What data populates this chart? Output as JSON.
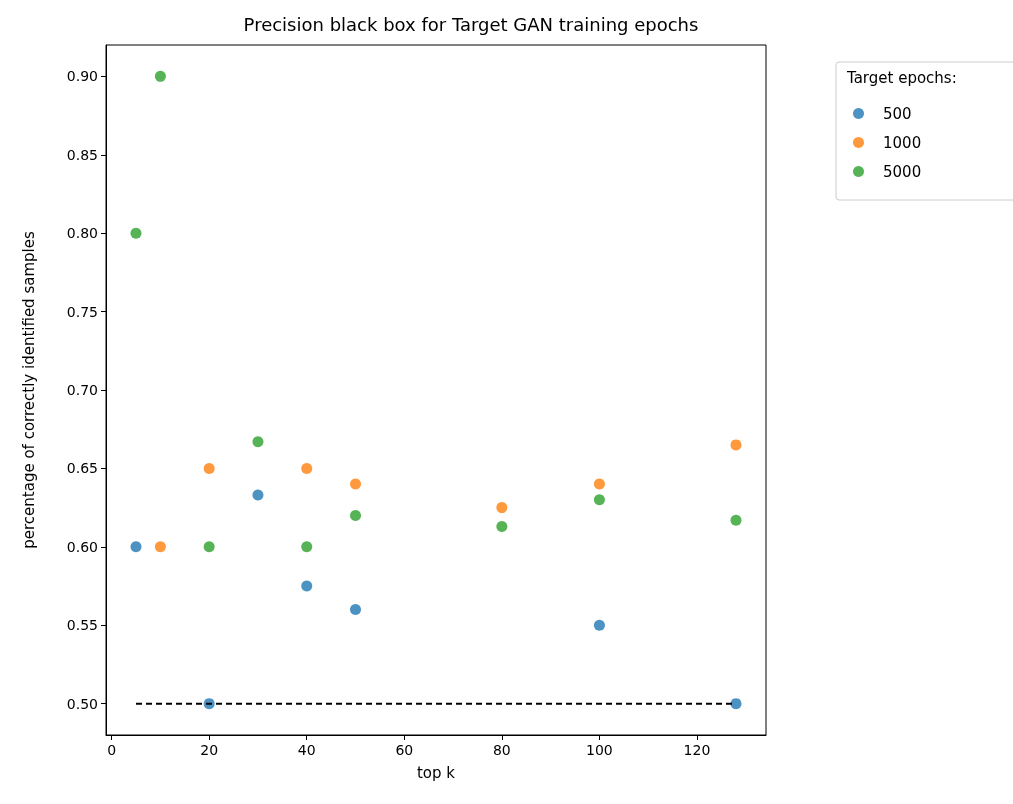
{
  "chart_data": {
    "type": "scatter",
    "title": "Precision black box for Target GAN training epochs",
    "xlabel": "top k",
    "ylabel": "percentage of correctly identified samples",
    "legend_title": "Target epochs:",
    "legend": "top right",
    "grid": false,
    "marker": "circle",
    "xlim": [
      -1.15,
      134.15
    ],
    "xticks": [
      0,
      20,
      40,
      60,
      80,
      100,
      120
    ],
    "ylim": [
      0.48,
      0.92
    ],
    "yticks": [
      {
        "value": 0.5,
        "label": "0.50"
      },
      {
        "value": 0.55,
        "label": "0.55"
      },
      {
        "value": 0.6,
        "label": "0.60"
      },
      {
        "value": 0.65,
        "label": "0.65"
      },
      {
        "value": 0.7,
        "label": "0.70"
      },
      {
        "value": 0.75,
        "label": "0.75"
      },
      {
        "value": 0.8,
        "label": "0.80"
      },
      {
        "value": 0.85,
        "label": "0.85"
      },
      {
        "value": 0.9,
        "label": "0.90"
      }
    ],
    "series": [
      {
        "name": "500",
        "color": "#1f77b4",
        "x": [
          5,
          20,
          30,
          40,
          50,
          100,
          128
        ],
        "values": [
          0.6,
          0.5,
          0.633,
          0.575,
          0.56,
          0.55,
          0.5
        ]
      },
      {
        "name": "1000",
        "color": "#ff7f0e",
        "x": [
          10,
          20,
          40,
          50,
          80,
          100,
          128
        ],
        "values": [
          0.6,
          0.65,
          0.65,
          0.64,
          0.625,
          0.64,
          0.665
        ]
      },
      {
        "name": "5000",
        "color": "#2ca02c",
        "x": [
          5,
          10,
          20,
          30,
          40,
          50,
          80,
          100,
          128
        ],
        "values": [
          0.8,
          0.9,
          0.6,
          0.667,
          0.6,
          0.62,
          0.613,
          0.63,
          0.617
        ]
      },
      {
        "type": "line",
        "color": "#000000",
        "line_style": "dashed",
        "marker": "none",
        "x": [
          5,
          128
        ],
        "values": [
          0.5,
          0.5
        ]
      }
    ]
  }
}
